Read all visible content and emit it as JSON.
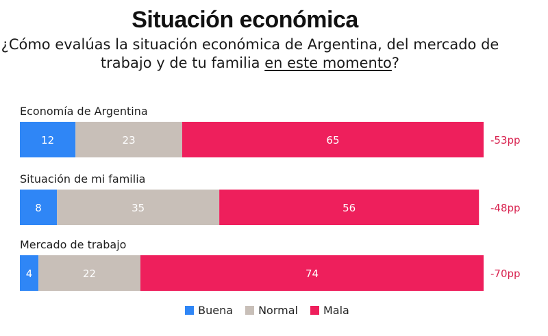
{
  "header": {
    "title": "Situación económica",
    "subtitle_pre": "¿Cómo evalúas la situación económica de Argentina, del mercado de trabajo y de tu familia ",
    "subtitle_underlined": "en este momento",
    "subtitle_post": "?"
  },
  "colors": {
    "buena": "#2f86f6",
    "normal": "#c8bfb8",
    "mala": "#ee1f5c",
    "diff": "#d8214e"
  },
  "chart_data": {
    "type": "bar",
    "orientation": "horizontal",
    "stacked": true,
    "title": "Situación económica",
    "subtitle": "¿Cómo evalúas la situación económica de Argentina, del mercado de trabajo y de tu familia en este momento?",
    "categories": [
      "Economía de Argentina",
      "Situación de mi familia",
      "Mercado de trabajo"
    ],
    "series": [
      {
        "name": "Buena",
        "values": [
          12,
          8,
          4
        ]
      },
      {
        "name": "Normal",
        "values": [
          23,
          35,
          22
        ]
      },
      {
        "name": "Mala",
        "values": [
          65,
          56,
          74
        ]
      }
    ],
    "annotations": [
      "-53pp",
      "-48pp",
      "-70pp"
    ],
    "xlim": [
      0,
      100
    ],
    "legend": "bottom-center"
  }
}
